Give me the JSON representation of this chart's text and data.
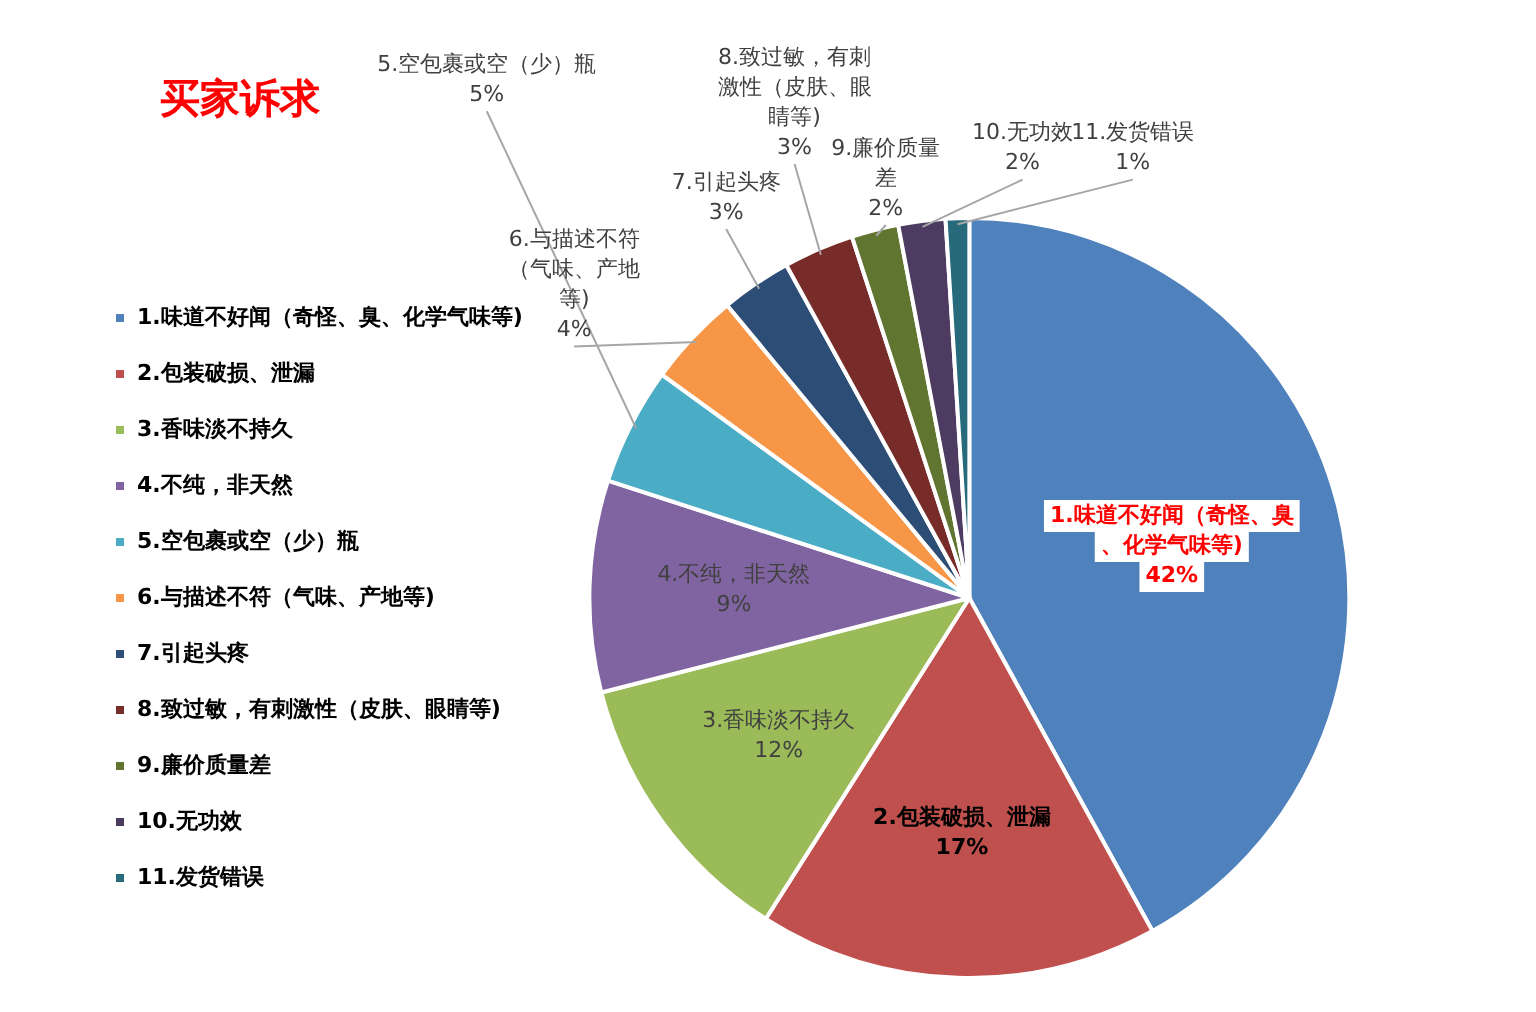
{
  "chart_data": {
    "type": "pie",
    "title": "买家诉求",
    "categories": [
      "1.味道不好闻（奇怪、臭、化学气味等)",
      "2.包装破损、泄漏",
      "3.香味淡不持久",
      "4.不纯，非天然",
      "5.空包裹或空（少）瓶",
      "6.与描述不符（气味、产地等)",
      "7.引起头疼",
      "8.致过敏，有刺激性（皮肤、眼睛等)",
      "9.廉价质量差",
      "10.无功效",
      "11.发货错误"
    ],
    "values": [
      42,
      17,
      12,
      9,
      5,
      4,
      3,
      3,
      2,
      2,
      1
    ],
    "value_labels": [
      "42%",
      "17%",
      "12%",
      "9%",
      "5%",
      "4%",
      "3%",
      "3%",
      "2%",
      "2%",
      "1%"
    ],
    "colors": [
      "#4f81bd",
      "#c0504d",
      "#9bbb59",
      "#8064a2",
      "#4bacc6",
      "#f79646",
      "#2c4d75",
      "#772c2a",
      "#5f7530",
      "#4d3b62",
      "#276a7c"
    ],
    "legend": "left"
  }
}
